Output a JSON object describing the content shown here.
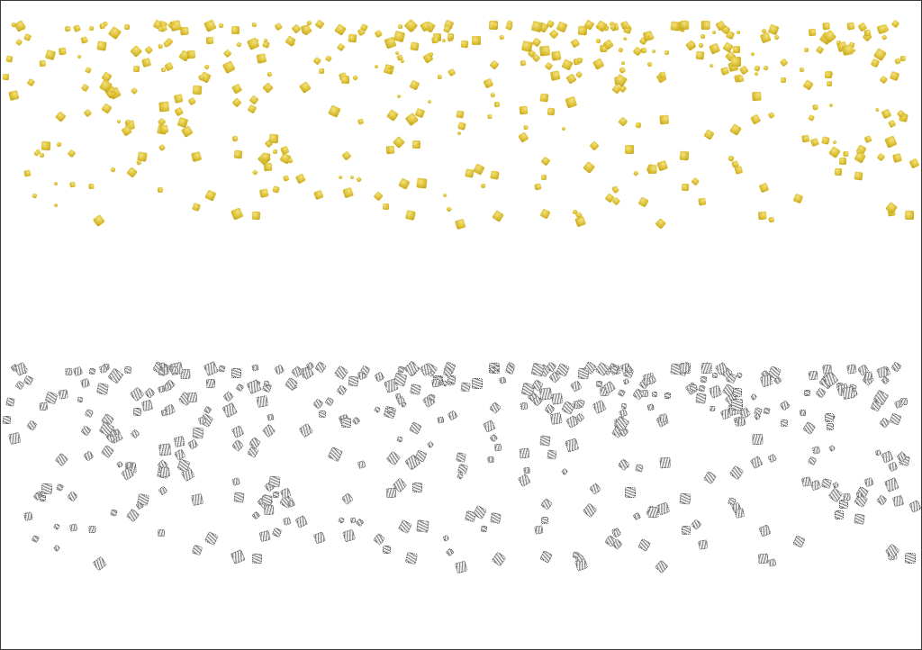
{
  "colors": {
    "gold": "#d8bb2e",
    "silver": "#8a8a8a",
    "background": "#ffffff",
    "border": "#3a3a3a"
  }
}
